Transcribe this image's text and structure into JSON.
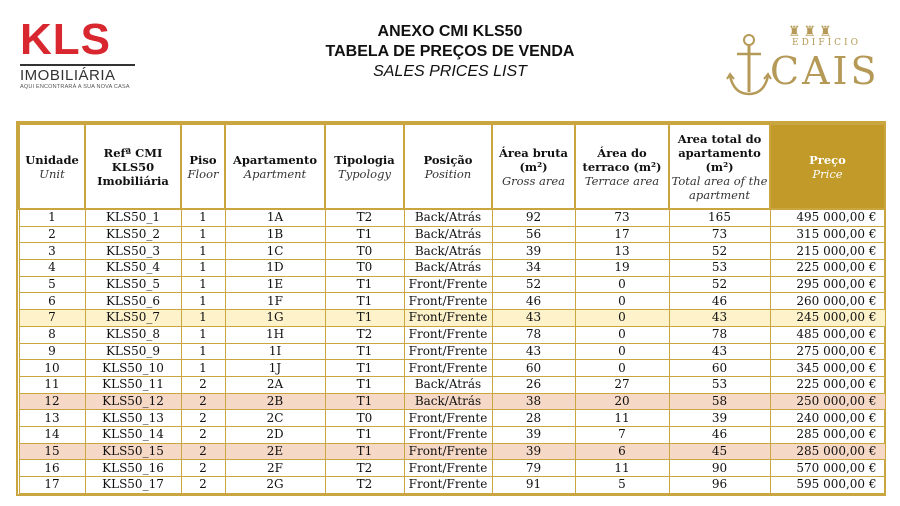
{
  "logo_left": {
    "word": "KLS",
    "sub": "IMOBILIÁRIA",
    "tagline": "AQUI ENCONTRARÁ A SUA NOVA CASA"
  },
  "title": {
    "line1": "ANEXO CMI KLS50",
    "line2": "TABELA DE PREÇOS DE VENDA",
    "line3": "SALES PRICES LIST"
  },
  "logo_right": {
    "small": "EDIFÍCIO",
    "word": "CAIS"
  },
  "colors": {
    "gold": "#c19a29",
    "highlight_yellow": "#fdf2c9",
    "highlight_pink": "#f6d8c6",
    "brand_red": "#d8272e"
  },
  "columns": [
    {
      "pt": "Unidade",
      "en": "Unit"
    },
    {
      "pt": "Refª CMI KLS50 Imobiliária",
      "en": ""
    },
    {
      "pt": "Piso",
      "en": "Floor"
    },
    {
      "pt": "Apartamento",
      "en": "Apartment"
    },
    {
      "pt": "Tipologia",
      "en": "Typology"
    },
    {
      "pt": "Posição",
      "en": "Position"
    },
    {
      "pt": "Área bruta (m²)",
      "en": "Gross area"
    },
    {
      "pt": "Área do terraco (m²)",
      "en": "Terrace area"
    },
    {
      "pt": "Area total do apartamento (m²)",
      "en": "Total area of the apartment"
    },
    {
      "pt": "Preço",
      "en": "Price"
    }
  ],
  "rows": [
    {
      "hl": "",
      "cells": [
        "1",
        "KLS50_1",
        "1",
        "1A",
        "T2",
        "Back/Atrás",
        "92",
        "73",
        "165",
        "495 000,00 €"
      ]
    },
    {
      "hl": "",
      "cells": [
        "2",
        "KLS50_2",
        "1",
        "1B",
        "T1",
        "Back/Atrás",
        "56",
        "17",
        "73",
        "315 000,00 €"
      ]
    },
    {
      "hl": "",
      "cells": [
        "3",
        "KLS50_3",
        "1",
        "1C",
        "T0",
        "Back/Atrás",
        "39",
        "13",
        "52",
        "215 000,00 €"
      ]
    },
    {
      "hl": "",
      "cells": [
        "4",
        "KLS50_4",
        "1",
        "1D",
        "T0",
        "Back/Atrás",
        "34",
        "19",
        "53",
        "225 000,00 €"
      ]
    },
    {
      "hl": "",
      "cells": [
        "5",
        "KLS50_5",
        "1",
        "1E",
        "T1",
        "Front/Frente",
        "52",
        "0",
        "52",
        "295 000,00 €"
      ]
    },
    {
      "hl": "",
      "cells": [
        "6",
        "KLS50_6",
        "1",
        "1F",
        "T1",
        "Front/Frente",
        "46",
        "0",
        "46",
        "260 000,00 €"
      ]
    },
    {
      "hl": "yellow",
      "cells": [
        "7",
        "KLS50_7",
        "1",
        "1G",
        "T1",
        "Front/Frente",
        "43",
        "0",
        "43",
        "245 000,00 €"
      ]
    },
    {
      "hl": "",
      "cells": [
        "8",
        "KLS50_8",
        "1",
        "1H",
        "T2",
        "Front/Frente",
        "78",
        "0",
        "78",
        "485 000,00 €"
      ]
    },
    {
      "hl": "",
      "cells": [
        "9",
        "KLS50_9",
        "1",
        "1I",
        "T1",
        "Front/Frente",
        "43",
        "0",
        "43",
        "275 000,00 €"
      ]
    },
    {
      "hl": "",
      "cells": [
        "10",
        "KLS50_10",
        "1",
        "1J",
        "T1",
        "Front/Frente",
        "60",
        "0",
        "60",
        "345 000,00 €"
      ]
    },
    {
      "hl": "",
      "cells": [
        "11",
        "KLS50_11",
        "2",
        "2A",
        "T1",
        "Back/Atrás",
        "26",
        "27",
        "53",
        "225 000,00 €"
      ]
    },
    {
      "hl": "pink",
      "cells": [
        "12",
        "KLS50_12",
        "2",
        "2B",
        "T1",
        "Back/Atrás",
        "38",
        "20",
        "58",
        "250 000,00 €"
      ]
    },
    {
      "hl": "",
      "cells": [
        "13",
        "KLS50_13",
        "2",
        "2C",
        "T0",
        "Front/Frente",
        "28",
        "11",
        "39",
        "240 000,00 €"
      ]
    },
    {
      "hl": "",
      "cells": [
        "14",
        "KLS50_14",
        "2",
        "2D",
        "T1",
        "Front/Frente",
        "39",
        "7",
        "46",
        "285 000,00 €"
      ]
    },
    {
      "hl": "pink",
      "cells": [
        "15",
        "KLS50_15",
        "2",
        "2E",
        "T1",
        "Front/Frente",
        "39",
        "6",
        "45",
        "285 000,00 €"
      ]
    },
    {
      "hl": "",
      "cells": [
        "16",
        "KLS50_16",
        "2",
        "2F",
        "T2",
        "Front/Frente",
        "79",
        "11",
        "90",
        "570 000,00 €"
      ]
    },
    {
      "hl": "",
      "cells": [
        "17",
        "KLS50_17",
        "2",
        "2G",
        "T2",
        "Front/Frente",
        "91",
        "5",
        "96",
        "595 000,00 €"
      ]
    }
  ]
}
